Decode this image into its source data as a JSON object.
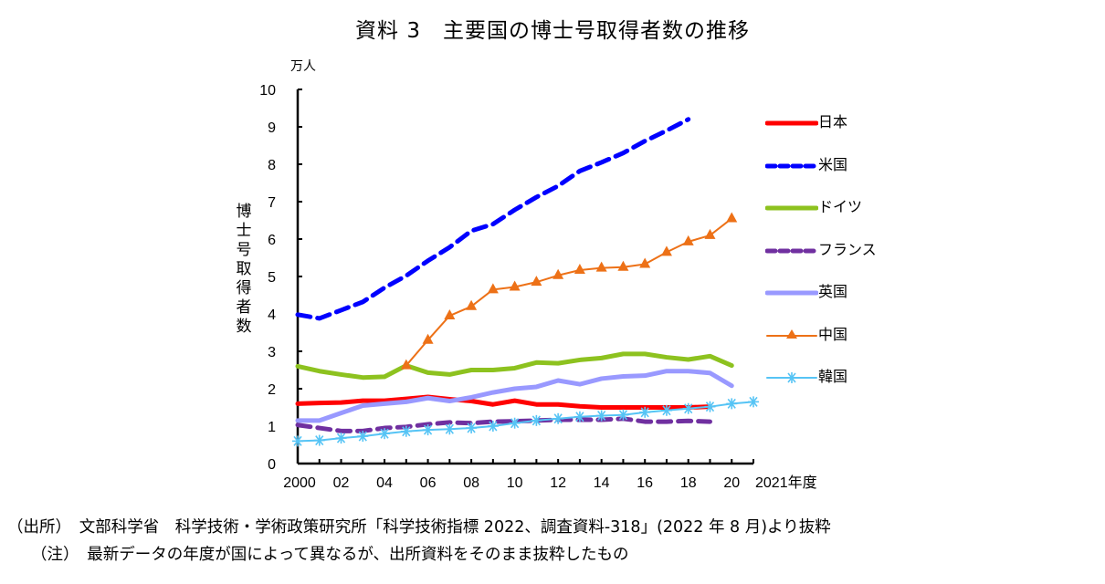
{
  "title": "資料 3　主要国の博士号取得者数の推移",
  "source_note": "（出所）　文部科学省　科学技術・学術政策研究所「科学技術指標 2022、調査資料-318」(2022 年 8 月)より抜粋",
  "footnote": "（注）　最新データの年度が国によって異なるが、出所資料をそのまま抜粋したもの",
  "chart_data": {
    "type": "line",
    "title": "資料 3　主要国の博士号取得者数の推移",
    "ylabel": "博士号取得者数",
    "yunit": "万人",
    "xlabel": "年度",
    "ylim": [
      0,
      10
    ],
    "xlim": [
      2000,
      2021
    ],
    "yticks": [
      "0",
      "1",
      "2",
      "3",
      "4",
      "5",
      "6",
      "7",
      "8",
      "9",
      "10"
    ],
    "xticks": [
      "2000",
      "02",
      "04",
      "06",
      "08",
      "10",
      "12",
      "14",
      "16",
      "18",
      "20",
      "2021年度"
    ],
    "grid": false,
    "legend_position": "right",
    "series": [
      {
        "name": "日本",
        "color": "#ff0000",
        "style": "solid",
        "x": [
          2000,
          2001,
          2002,
          2003,
          2004,
          2005,
          2006,
          2007,
          2008,
          2009,
          2010,
          2011,
          2012,
          2013,
          2014,
          2015,
          2016,
          2017,
          2018,
          2019
        ],
        "values": [
          1.6,
          1.62,
          1.63,
          1.68,
          1.68,
          1.73,
          1.78,
          1.72,
          1.67,
          1.58,
          1.68,
          1.58,
          1.58,
          1.53,
          1.5,
          1.5,
          1.5,
          1.5,
          1.5,
          1.52
        ]
      },
      {
        "name": "米国",
        "color": "#0000ff",
        "style": "dashed",
        "x": [
          2000,
          2001,
          2002,
          2003,
          2004,
          2005,
          2006,
          2007,
          2008,
          2009,
          2010,
          2011,
          2012,
          2013,
          2014,
          2015,
          2016,
          2017,
          2018
        ],
        "values": [
          3.98,
          3.88,
          4.1,
          4.32,
          4.7,
          5.02,
          5.42,
          5.78,
          6.22,
          6.4,
          6.78,
          7.12,
          7.42,
          7.82,
          8.05,
          8.3,
          8.62,
          8.9,
          9.2
        ]
      },
      {
        "name": "ドイツ",
        "color": "#8dc21f",
        "style": "solid",
        "x": [
          2000,
          2001,
          2002,
          2003,
          2004,
          2005,
          2006,
          2007,
          2008,
          2009,
          2010,
          2011,
          2012,
          2013,
          2014,
          2015,
          2016,
          2017,
          2018,
          2019,
          2020
        ],
        "values": [
          2.6,
          2.47,
          2.38,
          2.3,
          2.32,
          2.62,
          2.43,
          2.38,
          2.5,
          2.5,
          2.55,
          2.7,
          2.68,
          2.77,
          2.82,
          2.93,
          2.93,
          2.84,
          2.78,
          2.87,
          2.62
        ]
      },
      {
        "name": "フランス",
        "color": "#7030a0",
        "style": "dashed",
        "x": [
          2000,
          2001,
          2002,
          2003,
          2004,
          2005,
          2006,
          2007,
          2008,
          2009,
          2010,
          2011,
          2012,
          2013,
          2014,
          2015,
          2016,
          2017,
          2018,
          2019
        ],
        "values": [
          1.03,
          0.95,
          0.87,
          0.87,
          0.95,
          0.98,
          1.05,
          1.1,
          1.08,
          1.12,
          1.13,
          1.15,
          1.17,
          1.17,
          1.17,
          1.2,
          1.12,
          1.12,
          1.14,
          1.12
        ]
      },
      {
        "name": "英国",
        "color": "#9999ff",
        "style": "solid",
        "x": [
          2000,
          2001,
          2002,
          2003,
          2004,
          2005,
          2006,
          2007,
          2008,
          2009,
          2010,
          2011,
          2012,
          2013,
          2014,
          2015,
          2016,
          2017,
          2018,
          2019,
          2020
        ],
        "values": [
          1.15,
          1.15,
          1.35,
          1.55,
          1.6,
          1.65,
          1.75,
          1.67,
          1.77,
          1.9,
          2.0,
          2.05,
          2.22,
          2.12,
          2.27,
          2.33,
          2.35,
          2.47,
          2.47,
          2.42,
          2.08
        ]
      },
      {
        "name": "中国",
        "color": "#ed7117",
        "style": "solid-triangle",
        "x": [
          2005,
          2006,
          2007,
          2008,
          2009,
          2010,
          2011,
          2012,
          2013,
          2014,
          2015,
          2016,
          2017,
          2018,
          2019,
          2020
        ],
        "values": [
          2.62,
          3.3,
          3.95,
          4.2,
          4.65,
          4.72,
          4.85,
          5.03,
          5.17,
          5.23,
          5.25,
          5.33,
          5.65,
          5.93,
          6.1,
          6.55
        ]
      },
      {
        "name": "韓国",
        "color": "#56c4f5",
        "style": "solid-asterisk",
        "x": [
          2000,
          2001,
          2002,
          2003,
          2004,
          2005,
          2006,
          2007,
          2008,
          2009,
          2010,
          2011,
          2012,
          2013,
          2014,
          2015,
          2016,
          2017,
          2018,
          2019,
          2020,
          2021
        ],
        "values": [
          0.6,
          0.62,
          0.68,
          0.73,
          0.8,
          0.86,
          0.9,
          0.92,
          0.95,
          1.0,
          1.08,
          1.15,
          1.2,
          1.25,
          1.28,
          1.3,
          1.37,
          1.42,
          1.47,
          1.52,
          1.6,
          1.65
        ]
      }
    ]
  }
}
